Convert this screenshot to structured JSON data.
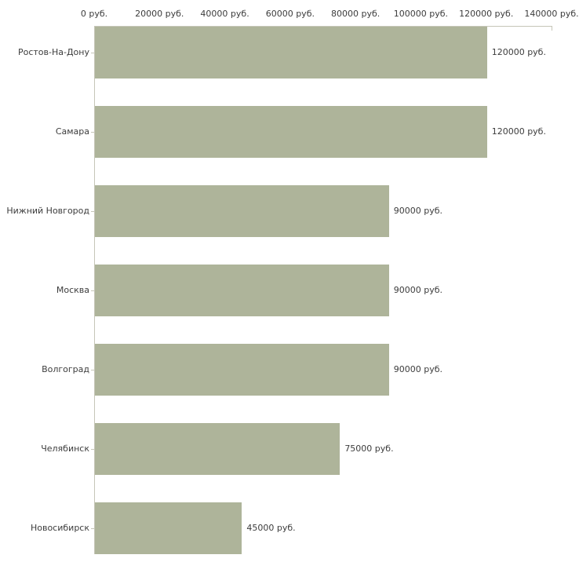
{
  "chart_data": {
    "type": "bar",
    "orientation": "horizontal",
    "title": "",
    "xlabel": "",
    "ylabel": "",
    "xlim": [
      0,
      140000
    ],
    "x_ticks": [
      0,
      20000,
      40000,
      60000,
      80000,
      100000,
      120000,
      140000
    ],
    "x_tick_labels": [
      "0 руб.",
      "20000 руб.",
      "40000 руб.",
      "60000 руб.",
      "80000 руб.",
      "100000 руб.",
      "120000 руб.",
      "140000 руб."
    ],
    "categories": [
      "Ростов-На-Дону",
      "Самара",
      "Нижний Новгород",
      "Москва",
      "Волгоград",
      "Челябинск",
      "Новосибирск"
    ],
    "values": [
      120000,
      120000,
      90000,
      90000,
      90000,
      75000,
      45000
    ],
    "value_labels": [
      "120000 руб.",
      "120000 руб.",
      "90000 руб.",
      "90000 руб.",
      "90000 руб.",
      "75000 руб.",
      "45000 руб."
    ],
    "grid": false,
    "legend_position": "none",
    "colors": {
      "bar": "#aeb49a",
      "axis": "#c6c6b8",
      "text": "#3c3c3c",
      "background": "#ffffff"
    }
  }
}
